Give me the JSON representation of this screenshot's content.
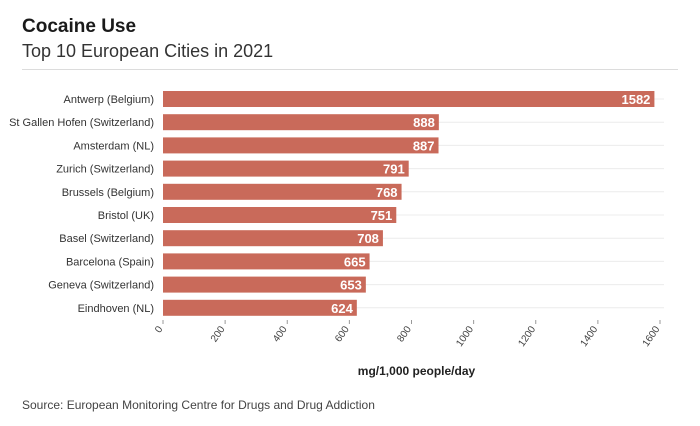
{
  "header": {
    "title": "Cocaine Use",
    "subtitle": "Top 10 European Cities in 2021"
  },
  "footer": {
    "source": "Source: European Monitoring Centre for Drugs and Drug Addiction"
  },
  "chart_data": {
    "type": "bar",
    "orientation": "horizontal",
    "categories": [
      "Antwerp (Belgium)",
      "St Gallen Hofen (Switzerland)",
      "Amsterdam (NL)",
      "Zurich (Switzerland)",
      "Brussels (Belgium)",
      "Bristol (UK)",
      "Basel (Switzerland)",
      "Barcelona (Spain)",
      "Geneva (Switzerland)",
      "Eindhoven (NL)"
    ],
    "values": [
      1582,
      888,
      887,
      791,
      768,
      751,
      708,
      665,
      653,
      624
    ],
    "xlabel": "mg/1,000 people/day",
    "xlim": [
      0,
      1600
    ],
    "xticks": [
      0,
      200,
      400,
      600,
      800,
      1000,
      1200,
      1400,
      1600
    ],
    "grid": true,
    "data_labels": true,
    "bar_color": "#c96a5a"
  }
}
